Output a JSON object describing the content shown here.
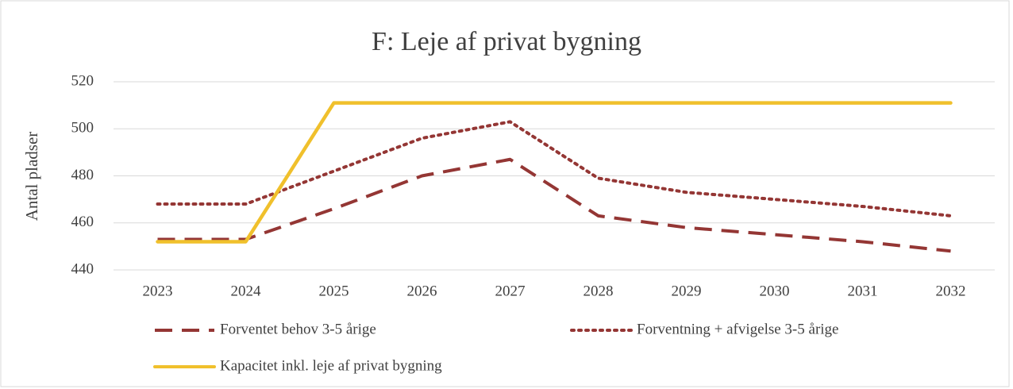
{
  "chart_data": {
    "type": "line",
    "title": "F: Leje af privat bygning",
    "y_label": "Antal pladser",
    "categories": [
      "2023",
      "2024",
      "2025",
      "2026",
      "2027",
      "2028",
      "2029",
      "2030",
      "2031",
      "2032"
    ],
    "series": [
      {
        "name": "Forventet behov 3-5 årige",
        "color": "#943634",
        "dash": "dashed",
        "values": [
          453,
          453,
          466,
          480,
          487,
          463,
          458,
          455,
          452,
          448
        ]
      },
      {
        "name": "Forventning + afvigelse 3-5 årige",
        "color": "#943634",
        "dash": "dotted",
        "values": [
          468,
          468,
          482,
          496,
          503,
          479,
          473,
          470,
          467,
          463
        ]
      },
      {
        "name": "Kapacitet inkl. leje af privat bygning",
        "color": "#f0c02c",
        "dash": "solid",
        "values": [
          452,
          452,
          511,
          511,
          511,
          511,
          511,
          511,
          511,
          511
        ]
      }
    ],
    "ylim": [
      440,
      520
    ],
    "yticks": [
      440,
      460,
      480,
      500,
      520
    ],
    "grid": true
  }
}
